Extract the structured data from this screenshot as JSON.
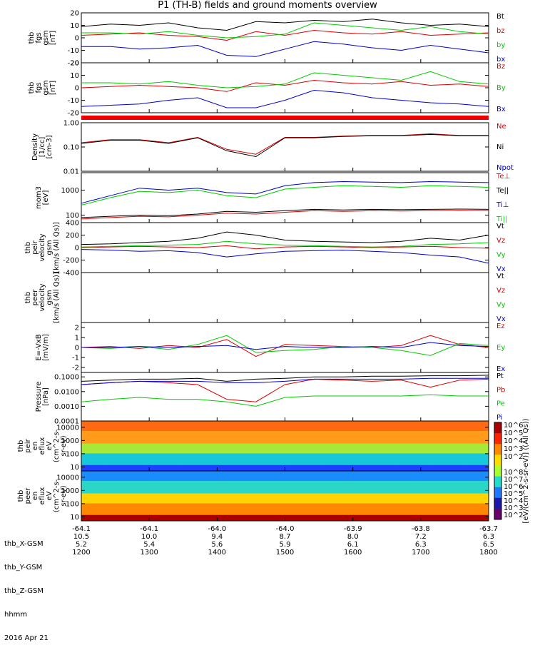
{
  "title": "P1 (TH-B) fields and ground moments overview",
  "footer": {
    "rows": [
      {
        "label": "thb_X-GSM",
        "values": [
          "-64.1",
          "-64.1",
          "-64.0",
          "-64.0",
          "-63.9",
          "-63.8",
          "-63.7"
        ]
      },
      {
        "label": "thb_Y-GSM",
        "values": [
          "10.5",
          "10.0",
          "9.4",
          "8.7",
          "8.0",
          "7.2",
          "6.3"
        ]
      },
      {
        "label": "thb_Z-GSM",
        "values": [
          "5.2",
          "5.4",
          "5.6",
          "5.9",
          "6.1",
          "6.3",
          "6.5"
        ]
      },
      {
        "label": "hhmm",
        "values": [
          "1200",
          "1300",
          "1400",
          "1500",
          "1600",
          "1700",
          "1800"
        ]
      }
    ],
    "date": "2016 Apr 21"
  },
  "colorbar": {
    "label": "[eV/(cm^2-s-sr-eV)] ((All Qs))",
    "top_ticks": [
      "10^6",
      "10^5",
      "10^4",
      "10^3",
      "10^2"
    ],
    "bottom_ticks": [
      "10^8",
      "10^7",
      "10^6",
      "10^5",
      "10^4",
      "10^3",
      "10^2"
    ]
  },
  "chart_data": [
    {
      "type": "line",
      "ylabel": [
        "thb",
        "fgs",
        "gsm",
        "[nT]"
      ],
      "ylim": [
        -20,
        20
      ],
      "yticks": [
        "20",
        "10",
        "0",
        "-10",
        "-20"
      ],
      "series": [
        {
          "name": "Bt",
          "color": "#000000",
          "values": [
            9,
            11,
            10,
            12,
            8,
            6,
            13,
            12,
            14,
            13,
            15,
            12,
            10,
            11,
            9
          ]
        },
        {
          "name": "bz",
          "color": "#dd0000",
          "values": [
            2,
            3,
            4,
            2,
            1,
            -2,
            5,
            2,
            6,
            4,
            3,
            5,
            2,
            3,
            4
          ]
        },
        {
          "name": "by",
          "color": "#00cc00",
          "values": [
            4,
            4,
            3,
            5,
            2,
            0,
            1,
            3,
            12,
            10,
            8,
            6,
            9,
            5,
            3
          ]
        },
        {
          "name": "bx",
          "color": "#0000cc",
          "values": [
            -7,
            -7,
            -9,
            -8,
            -6,
            -14,
            -15,
            -9,
            -3,
            -5,
            -8,
            -10,
            -6,
            -9,
            -12
          ]
        }
      ]
    },
    {
      "type": "line",
      "ylabel": [
        "thb",
        "fgs",
        "gsm",
        "[nT]"
      ],
      "ylim": [
        -20,
        20
      ],
      "yticks": [
        "20",
        "10",
        "0",
        "-10",
        "-20"
      ],
      "series": [
        {
          "name": "Bz",
          "color": "#dd0000",
          "values": [
            0,
            1,
            2,
            1,
            0,
            -3,
            4,
            2,
            6,
            4,
            3,
            5,
            2,
            3,
            1
          ]
        },
        {
          "name": "By",
          "color": "#00cc00",
          "values": [
            4,
            4,
            3,
            5,
            2,
            0,
            1,
            3,
            12,
            10,
            8,
            6,
            13,
            5,
            3
          ]
        },
        {
          "name": "Bx",
          "color": "#0000cc",
          "values": [
            -15,
            -14,
            -13,
            -10,
            -8,
            -16,
            -16,
            -10,
            -2,
            -4,
            -8,
            -10,
            -12,
            -13,
            -15
          ]
        }
      ]
    },
    {
      "type": "line",
      "ylabel": [
        "Density",
        "[1/cc]",
        "[cm-3]"
      ],
      "yscale": "log",
      "ylim": [
        0.01,
        1.0
      ],
      "yticks": [
        "1.00",
        "0.10",
        "0.01"
      ],
      "series": [
        {
          "name": "Ne",
          "color": "#dd0000",
          "values": [
            0.15,
            0.2,
            0.2,
            0.15,
            0.25,
            0.08,
            0.05,
            0.25,
            0.25,
            0.28,
            0.3,
            0.3,
            0.35,
            0.3,
            0.3
          ]
        },
        {
          "name": "Ni",
          "color": "#000000",
          "values": [
            0.14,
            0.19,
            0.19,
            0.14,
            0.24,
            0.07,
            0.04,
            0.24,
            0.24,
            0.27,
            0.29,
            0.29,
            0.33,
            0.29,
            0.29
          ]
        },
        {
          "name": "Npot",
          "color": "#0000cc",
          "values": []
        }
      ]
    },
    {
      "type": "line",
      "ylabel": [
        "mom3",
        "[eV]"
      ],
      "yscale": "log",
      "ylim": [
        50,
        5000
      ],
      "yticks": [
        "1000",
        "100"
      ],
      "series": [
        {
          "name": "Te⊥",
          "color": "#dd0000",
          "values": [
            70,
            80,
            90,
            85,
            100,
            120,
            110,
            130,
            150,
            140,
            150,
            145,
            150,
            155,
            150
          ]
        },
        {
          "name": "Te||",
          "color": "#000000",
          "values": [
            80,
            90,
            100,
            95,
            110,
            140,
            130,
            150,
            170,
            160,
            170,
            165,
            170,
            175,
            170
          ]
        },
        {
          "name": "Ti⊥",
          "color": "#0000cc",
          "values": [
            300,
            600,
            1200,
            1000,
            1200,
            800,
            700,
            1500,
            2000,
            2200,
            2100,
            2000,
            2200,
            2100,
            2000
          ]
        },
        {
          "name": "Ti||",
          "color": "#00cc00",
          "values": [
            250,
            500,
            900,
            800,
            1000,
            600,
            500,
            1100,
            1300,
            1500,
            1400,
            1300,
            1500,
            1400,
            1300
          ]
        }
      ]
    },
    {
      "type": "line",
      "ylabel": [
        "thb",
        "peir",
        "velocity",
        "gsm",
        "[km/s (All Qs)]"
      ],
      "ylim": [
        -400,
        400
      ],
      "yticks": [
        "400",
        "200",
        "0",
        "-200",
        "-400"
      ],
      "series": [
        {
          "name": "Vt",
          "color": "#000000",
          "values": [
            50,
            60,
            80,
            100,
            150,
            250,
            200,
            120,
            100,
            90,
            80,
            100,
            150,
            120,
            200
          ]
        },
        {
          "name": "Vz",
          "color": "#dd0000",
          "values": [
            0,
            10,
            20,
            10,
            0,
            30,
            -20,
            10,
            20,
            10,
            0,
            10,
            20,
            0,
            -10
          ]
        },
        {
          "name": "Vy",
          "color": "#00cc00",
          "values": [
            10,
            20,
            30,
            40,
            50,
            100,
            60,
            40,
            30,
            20,
            10,
            20,
            50,
            60,
            80
          ]
        },
        {
          "name": "Vx",
          "color": "#0000cc",
          "values": [
            -30,
            -40,
            -60,
            -50,
            -80,
            -150,
            -100,
            -60,
            -50,
            -40,
            -60,
            -80,
            -120,
            -150,
            -250
          ]
        }
      ]
    },
    {
      "type": "line",
      "ylabel": [
        "thb",
        "peer",
        "velocity",
        "gsm",
        "[km/s (All Qs)]"
      ],
      "ylim": [
        -400,
        400
      ],
      "yticks": [],
      "series": [
        {
          "name": "Vt",
          "color": "#000000",
          "values": []
        },
        {
          "name": "Vz",
          "color": "#dd0000",
          "values": []
        },
        {
          "name": "Vy",
          "color": "#00cc00",
          "values": []
        },
        {
          "name": "Vx",
          "color": "#0000cc",
          "values": []
        }
      ]
    },
    {
      "type": "line",
      "ylabel": [
        "E=-VxB",
        "[mV/m]"
      ],
      "ylim": [
        -2.5,
        2.5
      ],
      "yticks": [
        "2",
        "1",
        "0",
        "-1",
        "-2"
      ],
      "series": [
        {
          "name": "Ez",
          "color": "#dd0000",
          "values": [
            0,
            0.1,
            -0.1,
            0.2,
            0,
            0.8,
            -0.9,
            0.3,
            0.2,
            0.1,
            0,
            0.2,
            1.2,
            0.3,
            0
          ]
        },
        {
          "name": "Ey",
          "color": "#00cc00",
          "values": [
            0,
            -0.1,
            0.1,
            -0.2,
            0.3,
            1.2,
            -0.5,
            -0.3,
            -0.2,
            0.1,
            0,
            -0.3,
            -0.8,
            0.4,
            0.2
          ]
        },
        {
          "name": "Ex",
          "color": "#0000cc",
          "values": [
            0,
            0,
            0.1,
            0,
            0.1,
            0.2,
            -0.2,
            0.1,
            0,
            0,
            0.1,
            0,
            0.5,
            0.2,
            0.1
          ]
        }
      ]
    },
    {
      "type": "line",
      "ylabel": [
        "Pressure",
        "[nPa]"
      ],
      "yscale": "log",
      "ylim": [
        0.0001,
        0.2
      ],
      "yticks": [
        "0.1000",
        "0.0100",
        "0.0010",
        "0.0001"
      ],
      "series": [
        {
          "name": "Pt",
          "color": "#000000",
          "values": [
            0.05,
            0.06,
            0.07,
            0.07,
            0.08,
            0.05,
            0.07,
            0.08,
            0.1,
            0.1,
            0.11,
            0.11,
            0.12,
            0.12,
            0.13
          ]
        },
        {
          "name": "Pb",
          "color": "#dd0000",
          "values": [
            0.03,
            0.04,
            0.05,
            0.04,
            0.03,
            0.003,
            0.002,
            0.03,
            0.07,
            0.06,
            0.05,
            0.06,
            0.02,
            0.06,
            0.07
          ]
        },
        {
          "name": "Pe",
          "color": "#00cc00",
          "values": [
            0.002,
            0.003,
            0.004,
            0.003,
            0.003,
            0.002,
            0.001,
            0.004,
            0.005,
            0.005,
            0.005,
            0.005,
            0.006,
            0.005,
            0.005
          ]
        },
        {
          "name": "Pi",
          "color": "#0000cc",
          "values": [
            0.03,
            0.04,
            0.05,
            0.05,
            0.05,
            0.04,
            0.04,
            0.05,
            0.07,
            0.07,
            0.07,
            0.07,
            0.08,
            0.08,
            0.08
          ]
        }
      ]
    },
    {
      "type": "heatmap",
      "ylabel": [
        "thb",
        "peir",
        "en",
        "eflux",
        "eV",
        "(cm^2-s-",
        "sr-eV)"
      ],
      "yscale": "log",
      "ylim": [
        5,
        30000
      ],
      "yticks": [
        "10000",
        "1000",
        "100",
        "10"
      ]
    },
    {
      "type": "heatmap",
      "ylabel": [
        "thb",
        "peer",
        "en",
        "eflux",
        "eV",
        "(cm^2-s-",
        "sr-eV)"
      ],
      "yscale": "log",
      "ylim": [
        5,
        30000
      ],
      "yticks": [
        "10000",
        "1000",
        "100",
        "10"
      ]
    }
  ]
}
